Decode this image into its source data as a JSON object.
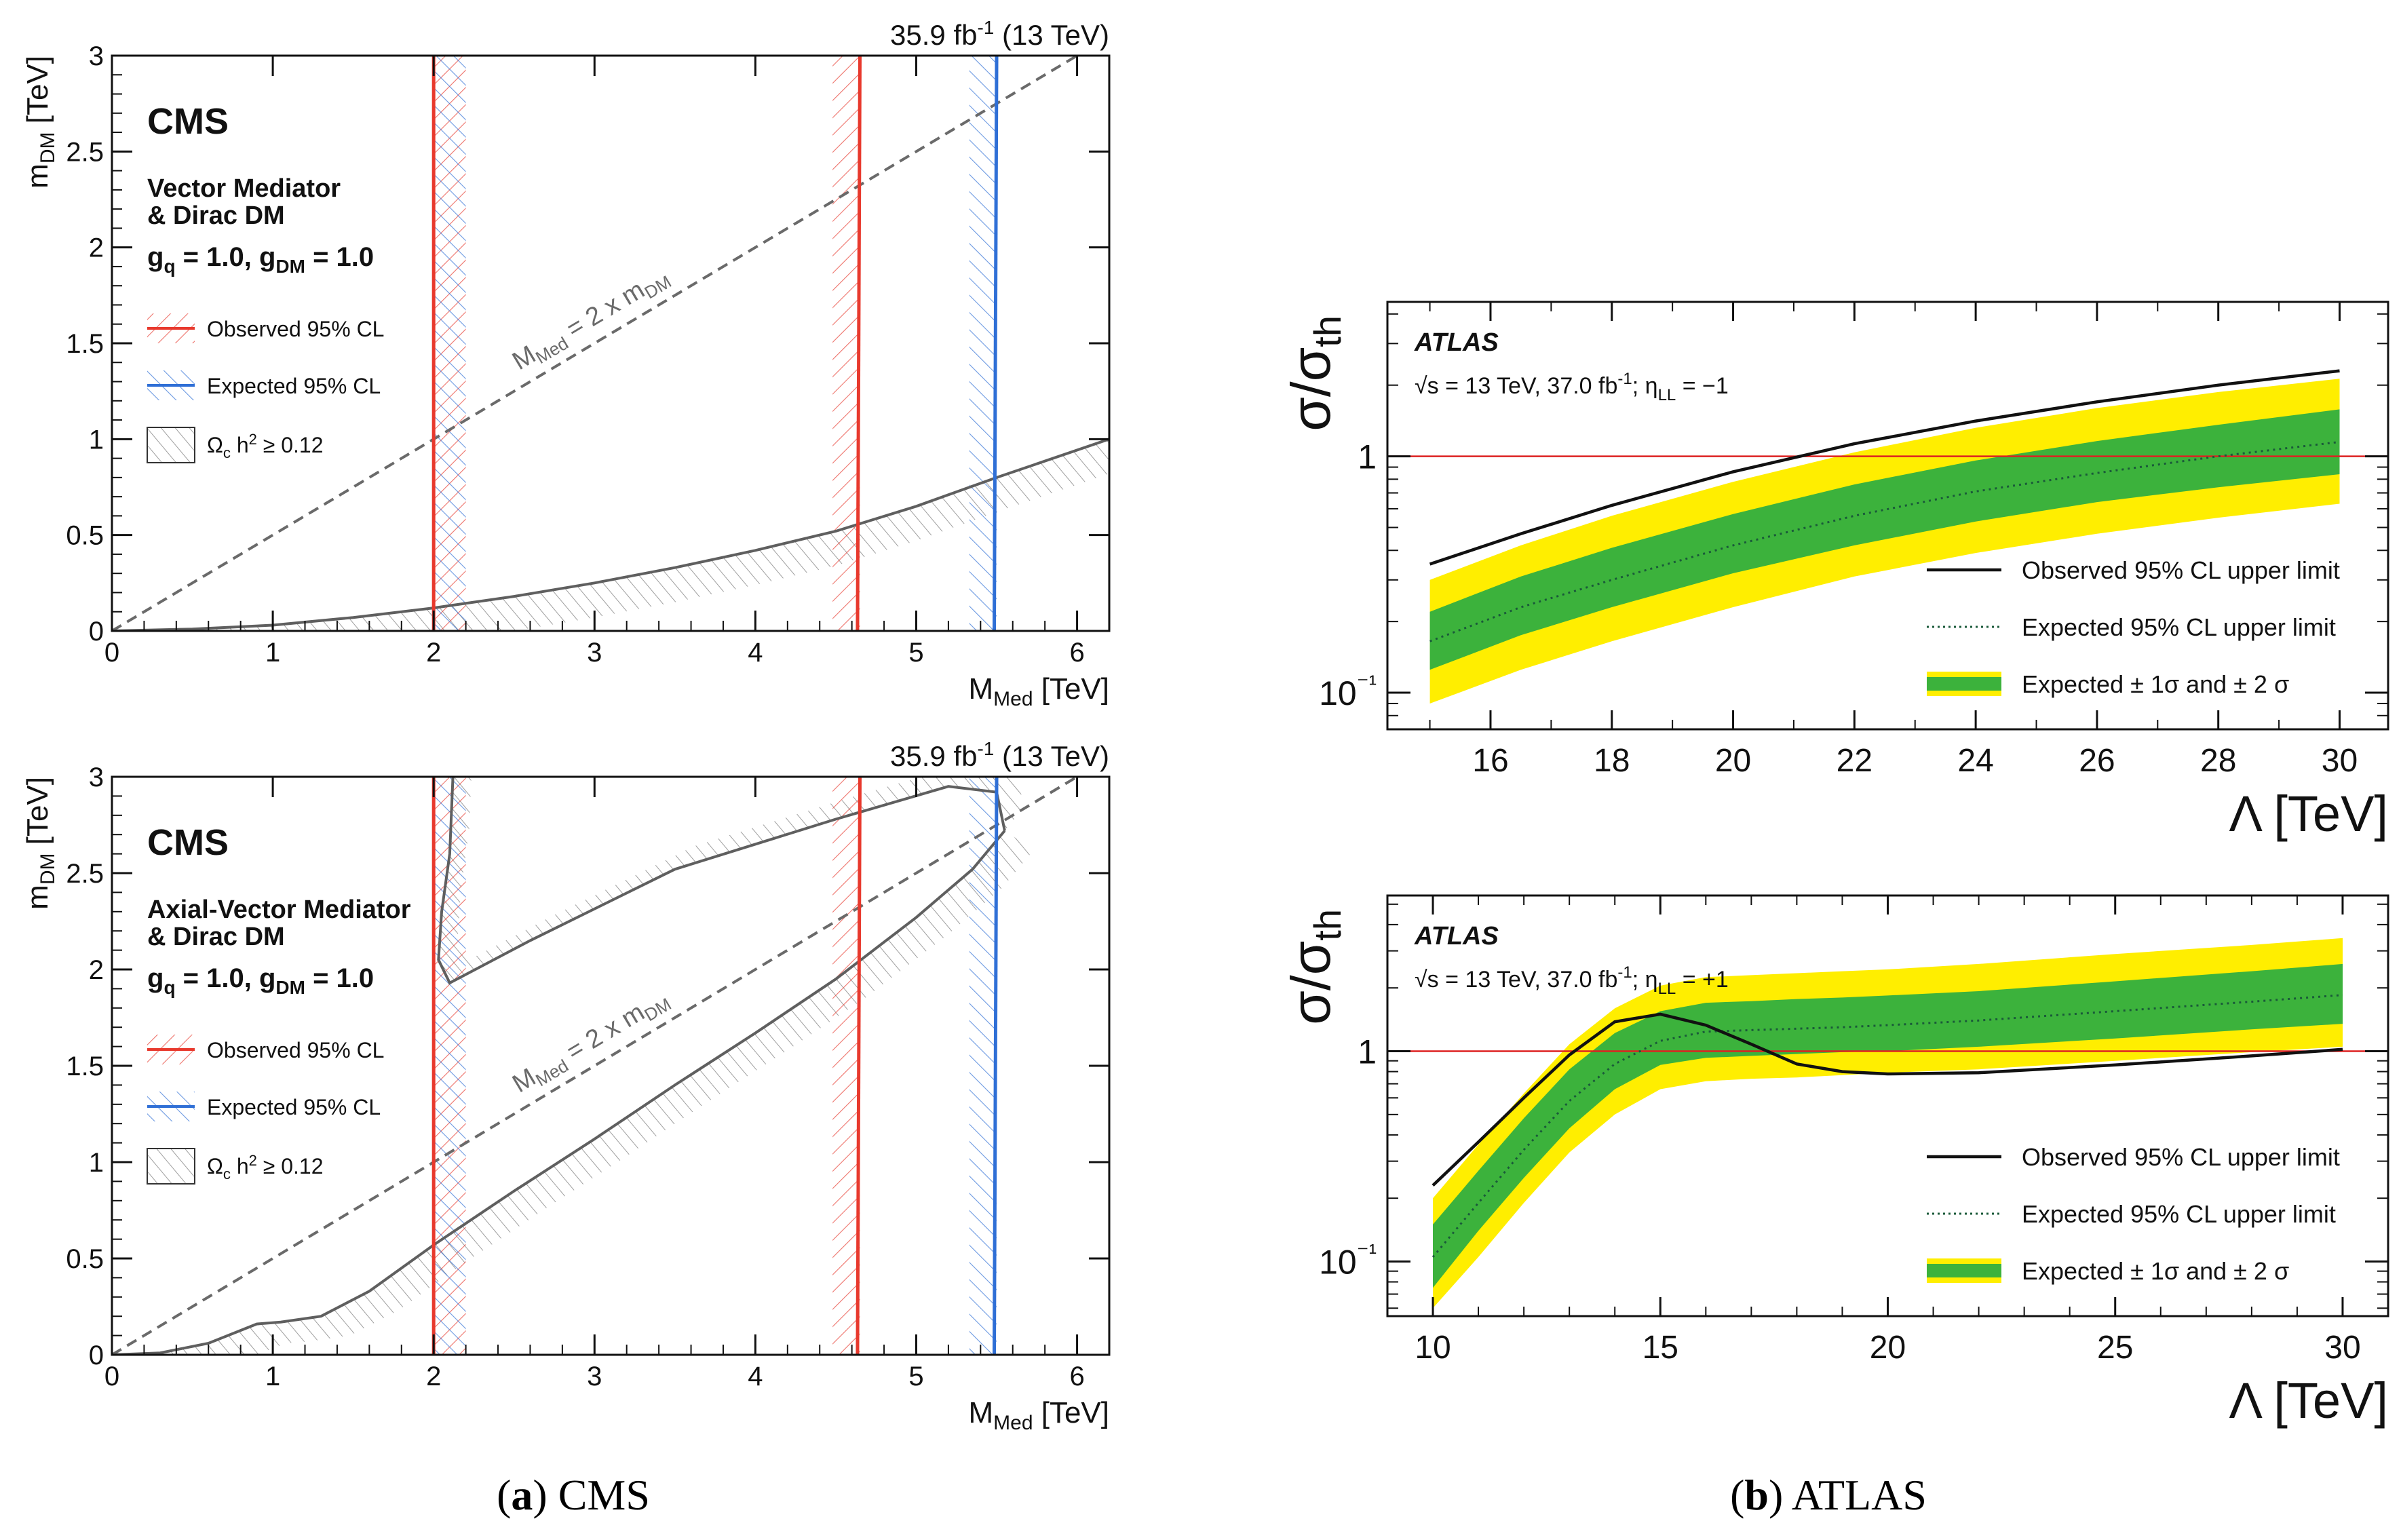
{
  "captions": {
    "a_letter": "a",
    "a_text": "CMS",
    "b_letter": "b",
    "b_text": "ATLAS"
  },
  "colors": {
    "observed": "#e8392d",
    "expected": "#2f6fd6",
    "relic": "#5f5f5f",
    "yellow": "#ffee00",
    "green": "#3cb23c"
  },
  "chart_data": [
    {
      "type": "line",
      "id": "cms-vector",
      "experiment_label": "CMS",
      "lumi_label": "35.9 fb⁻¹ (13 TeV)",
      "model_line1": "Vector Mediator",
      "model_line2": "& Dirac DM",
      "couplings": "gq = 1.0, gDM = 1.0",
      "diagonal_label": "MMed = 2 x mDM",
      "xlabel": "M_Med [TeV]",
      "ylabel": "m_DM [TeV]",
      "xlim": [
        0,
        6.2
      ],
      "ylim": [
        0,
        3
      ],
      "xticks": [
        0,
        1,
        2,
        3,
        4,
        5,
        6
      ],
      "yticks": [
        0,
        0.5,
        1,
        1.5,
        2,
        2.5,
        3
      ],
      "legend": [
        "Observed 95% CL",
        "Expected 95% CL",
        "Ωc h² ≥ 0.12"
      ],
      "legend_position": "left",
      "observed_limits_tev": [
        2.0,
        4.65
      ],
      "expected_limit_tev": 5.5,
      "relic_curve": [
        [
          0,
          0
        ],
        [
          0.5,
          0.01
        ],
        [
          1,
          0.03
        ],
        [
          1.5,
          0.07
        ],
        [
          2,
          0.12
        ],
        [
          2.5,
          0.18
        ],
        [
          3,
          0.25
        ],
        [
          3.5,
          0.33
        ],
        [
          4,
          0.42
        ],
        [
          4.5,
          0.52
        ],
        [
          5,
          0.65
        ],
        [
          5.5,
          0.8
        ],
        [
          6.2,
          1.0
        ]
      ]
    },
    {
      "type": "line",
      "id": "cms-axial",
      "experiment_label": "CMS",
      "lumi_label": "35.9 fb⁻¹ (13 TeV)",
      "model_line1": "Axial-Vector Mediator",
      "model_line2": "& Dirac DM",
      "couplings": "gq = 1.0, gDM = 1.0",
      "diagonal_label": "MMed = 2 x mDM",
      "xlabel": "M_Med [TeV]",
      "ylabel": "m_DM [TeV]",
      "xlim": [
        0,
        6.2
      ],
      "ylim": [
        0,
        3
      ],
      "xticks": [
        0,
        1,
        2,
        3,
        4,
        5,
        6
      ],
      "yticks": [
        0,
        0.5,
        1,
        1.5,
        2,
        2.5,
        3
      ],
      "legend": [
        "Observed 95% CL",
        "Expected 95% CL",
        "Ωc h² ≥ 0.12"
      ],
      "legend_position": "left",
      "observed_limits_tev": [
        2.0,
        4.65
      ],
      "expected_limit_tev": 5.5,
      "relic_curve_lower": [
        [
          0,
          0
        ],
        [
          0.3,
          0.01
        ],
        [
          0.6,
          0.06
        ],
        [
          0.9,
          0.16
        ],
        [
          1.05,
          0.17
        ],
        [
          1.3,
          0.2
        ],
        [
          1.6,
          0.33
        ],
        [
          2,
          0.57
        ],
        [
          2.5,
          0.85
        ],
        [
          3,
          1.12
        ],
        [
          3.5,
          1.4
        ],
        [
          4,
          1.67
        ],
        [
          4.5,
          1.95
        ],
        [
          5,
          2.27
        ],
        [
          5.35,
          2.52
        ],
        [
          5.55,
          2.72
        ]
      ],
      "relic_curve_upper": [
        [
          5.55,
          2.72
        ],
        [
          5.5,
          2.92
        ],
        [
          5.2,
          2.95
        ],
        [
          4.5,
          2.78
        ],
        [
          3.5,
          2.52
        ],
        [
          2.6,
          2.15
        ],
        [
          2.1,
          1.93
        ],
        [
          2.03,
          2.05
        ],
        [
          2.05,
          2.3
        ],
        [
          2.1,
          2.6
        ],
        [
          2.12,
          3.0
        ]
      ]
    },
    {
      "type": "area",
      "id": "atlas-minus",
      "experiment_label": "ATLAS",
      "energy_label": "√s = 13 TeV, 37.0 fb⁻¹; ηLL = −1",
      "xlabel": "Λ [TeV]",
      "ylabel": "σ/σth",
      "xlim": [
        14.3,
        30.8
      ],
      "ylim": [
        0.07,
        4.5
      ],
      "yscale": "log",
      "xticks": [
        16,
        18,
        20,
        22,
        24,
        26,
        28,
        30
      ],
      "yticks": [
        0.1,
        1
      ],
      "ytick_labels": [
        "10⁻¹",
        "1"
      ],
      "legend": [
        "Observed 95% CL upper limit",
        "Expected 95% CL upper limit",
        "Expected ± 1σ and ± 2 σ"
      ],
      "legend_position": "bottom-right",
      "reference_line": 1,
      "x": [
        15,
        16.5,
        18,
        20,
        22,
        24,
        26,
        28,
        30
      ],
      "observed": [
        0.35,
        0.47,
        0.62,
        0.86,
        1.13,
        1.41,
        1.7,
        2.0,
        2.3
      ],
      "expected": [
        0.165,
        0.23,
        0.3,
        0.42,
        0.56,
        0.71,
        0.85,
        1.0,
        1.15
      ],
      "band1_low": [
        0.125,
        0.175,
        0.23,
        0.32,
        0.42,
        0.53,
        0.64,
        0.74,
        0.84
      ],
      "band1_high": [
        0.22,
        0.31,
        0.41,
        0.57,
        0.76,
        0.96,
        1.16,
        1.36,
        1.58
      ],
      "band2_low": [
        0.09,
        0.125,
        0.165,
        0.23,
        0.31,
        0.39,
        0.47,
        0.55,
        0.63
      ],
      "band2_high": [
        0.3,
        0.42,
        0.56,
        0.78,
        1.04,
        1.32,
        1.6,
        1.87,
        2.13
      ]
    },
    {
      "type": "area",
      "id": "atlas-plus",
      "experiment_label": "ATLAS",
      "energy_label": "√s = 13 TeV, 37.0 fb⁻¹; ηLL = +1",
      "xlabel": "Λ [TeV]",
      "ylabel": "σ/σth",
      "xlim": [
        9,
        31
      ],
      "ylim": [
        0.055,
        5.5
      ],
      "yscale": "log",
      "xticks": [
        10,
        15,
        20,
        25,
        30
      ],
      "yticks": [
        0.1,
        1
      ],
      "ytick_labels": [
        "10⁻¹",
        "1"
      ],
      "legend": [
        "Observed 95% CL upper limit",
        "Expected 95% CL upper limit",
        "Expected ± 1σ and ± 2 σ"
      ],
      "legend_position": "bottom-right",
      "reference_line": 1,
      "x": [
        10,
        11,
        12,
        13,
        14,
        15,
        16,
        17,
        18,
        19,
        20,
        22,
        25,
        28,
        30
      ],
      "observed": [
        0.23,
        0.37,
        0.6,
        0.96,
        1.38,
        1.5,
        1.33,
        1.08,
        0.87,
        0.8,
        0.78,
        0.79,
        0.86,
        0.95,
        1.02
      ],
      "expected": [
        0.105,
        0.19,
        0.34,
        0.58,
        0.87,
        1.12,
        1.24,
        1.26,
        1.28,
        1.3,
        1.33,
        1.4,
        1.55,
        1.72,
        1.85
      ],
      "band1_low": [
        0.075,
        0.14,
        0.25,
        0.43,
        0.66,
        0.86,
        0.93,
        0.95,
        0.97,
        0.99,
        1.0,
        1.05,
        1.15,
        1.27,
        1.35
      ],
      "band1_high": [
        0.15,
        0.27,
        0.48,
        0.82,
        1.22,
        1.55,
        1.7,
        1.73,
        1.77,
        1.8,
        1.84,
        1.93,
        2.15,
        2.4,
        2.6
      ],
      "band2_low": [
        0.06,
        0.105,
        0.19,
        0.33,
        0.5,
        0.66,
        0.72,
        0.74,
        0.75,
        0.77,
        0.79,
        0.82,
        0.9,
        0.99,
        1.05
      ],
      "band2_high": [
        0.2,
        0.36,
        0.63,
        1.08,
        1.6,
        2.05,
        2.25,
        2.3,
        2.35,
        2.4,
        2.45,
        2.6,
        2.9,
        3.2,
        3.45
      ]
    }
  ]
}
